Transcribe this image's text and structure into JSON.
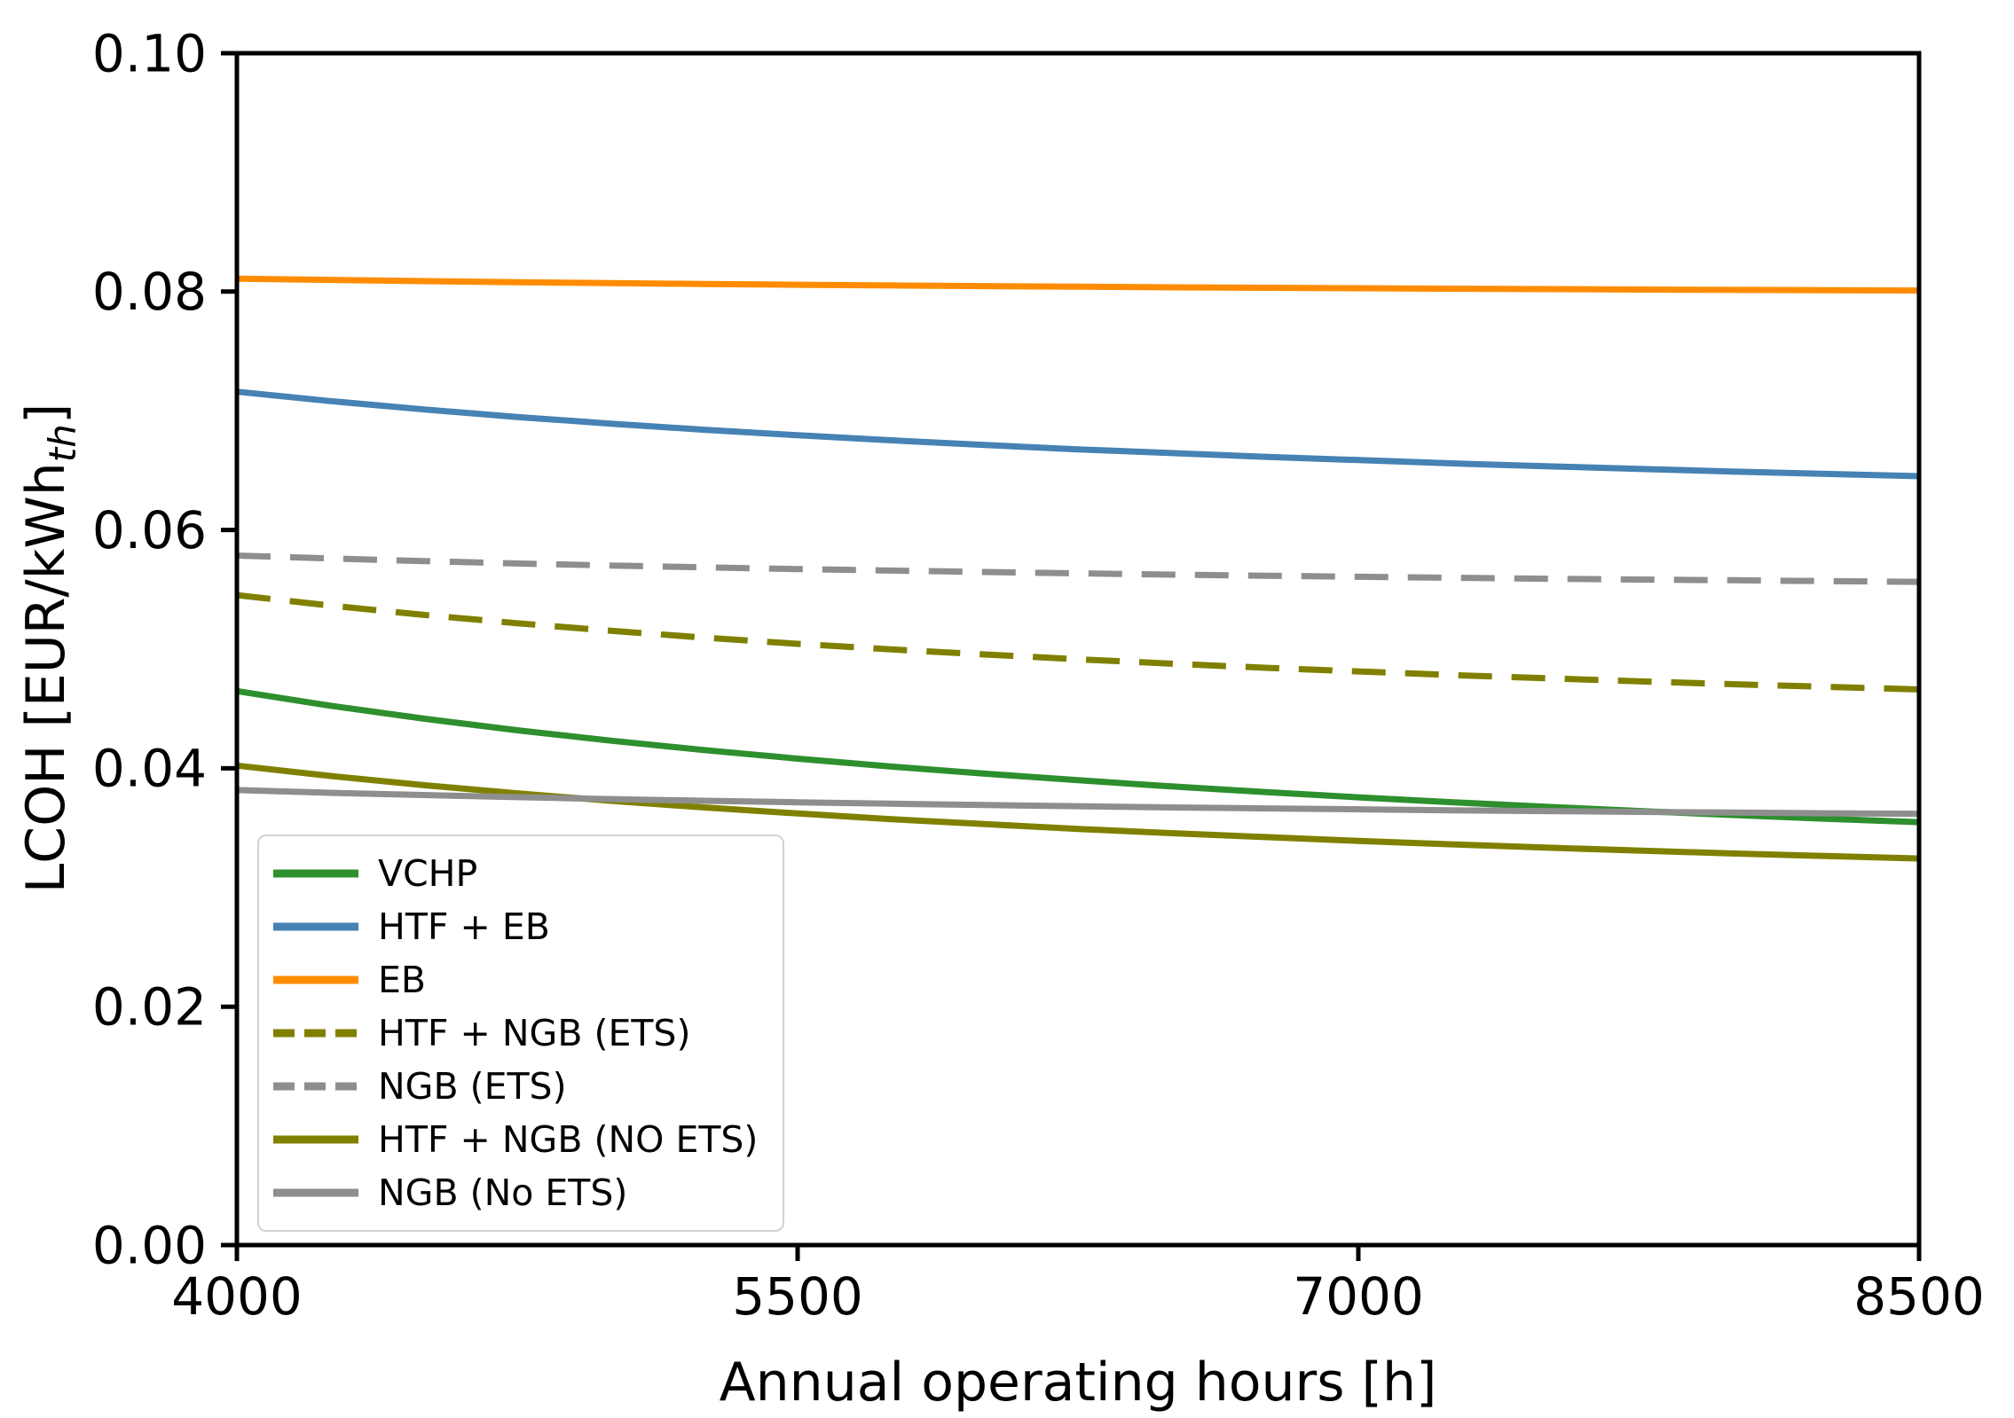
{
  "figure": {
    "background": "#ffffff",
    "axis_color": "#000000"
  },
  "chart_data": {
    "type": "line",
    "title": "",
    "xlabel": "Annual operating hours [h]",
    "ylabel_prefix": "LCOH [EUR/kWh",
    "ylabel_sub": "th",
    "ylabel_suffix": "]",
    "xlim": [
      4000,
      8500
    ],
    "ylim": [
      0.0,
      0.1
    ],
    "grid": false,
    "legend_position": "lower left",
    "xticks": [
      {
        "value": 4000,
        "label": "4000"
      },
      {
        "value": 5500,
        "label": "5500"
      },
      {
        "value": 7000,
        "label": "7000"
      },
      {
        "value": 8500,
        "label": "8500"
      }
    ],
    "yticks": [
      {
        "value": 0.0,
        "label": "0.00"
      },
      {
        "value": 0.02,
        "label": "0.02"
      },
      {
        "value": 0.04,
        "label": "0.04"
      },
      {
        "value": 0.06,
        "label": "0.06"
      },
      {
        "value": 0.08,
        "label": "0.08"
      },
      {
        "value": 0.1,
        "label": "0.10"
      }
    ],
    "x": [
      4000,
      4250,
      4500,
      4750,
      5000,
      5250,
      5500,
      5750,
      6000,
      6250,
      6500,
      6750,
      7000,
      7250,
      7500,
      7750,
      8000,
      8250,
      8500
    ],
    "series": [
      {
        "name": "VCHP",
        "color": "#2D8F2D",
        "style": "solid",
        "values": [
          0.04648,
          0.04525,
          0.04417,
          0.04319,
          0.04232,
          0.04153,
          0.04081,
          0.04015,
          0.03955,
          0.039,
          0.03848,
          0.03801,
          0.03757,
          0.03716,
          0.03678,
          0.03642,
          0.03609,
          0.03577,
          0.03548
        ]
      },
      {
        "name": "HTF + EB",
        "color": "#4682B4",
        "style": "solid",
        "values": [
          0.0716,
          0.07081,
          0.07011,
          0.06948,
          0.06892,
          0.06841,
          0.06795,
          0.06752,
          0.06713,
          0.06676,
          0.06645,
          0.06614,
          0.06586,
          0.06559,
          0.06535,
          0.06512,
          0.0649,
          0.0647,
          0.06451
        ]
      },
      {
        "name": "EB",
        "color": "#FF8C00",
        "style": "solid",
        "values": [
          0.08109,
          0.08098,
          0.08088,
          0.08079,
          0.08071,
          0.08064,
          0.08057,
          0.08051,
          0.08046,
          0.08041,
          0.08036,
          0.08032,
          0.08028,
          0.08024,
          0.08021,
          0.08017,
          0.08014,
          0.08012,
          0.08009
        ]
      },
      {
        "name": "HTF + NGB (ETS)",
        "color": "#808000",
        "style": "dashed",
        "values": [
          0.05453,
          0.05365,
          0.05287,
          0.05217,
          0.05154,
          0.05097,
          0.05045,
          0.04998,
          0.04955,
          0.04915,
          0.04878,
          0.04844,
          0.04813,
          0.04783,
          0.04756,
          0.0473,
          0.04706,
          0.04684,
          0.04662
        ]
      },
      {
        "name": "NGB (ETS)",
        "color": "#8E8E8E",
        "style": "dashed",
        "values": [
          0.05785,
          0.05761,
          0.05739,
          0.05719,
          0.05702,
          0.05686,
          0.05672,
          0.05659,
          0.05647,
          0.05636,
          0.05625,
          0.05616,
          0.05607,
          0.05599,
          0.05591,
          0.05584,
          0.05578,
          0.05571,
          0.05565
        ]
      },
      {
        "name": "HTF + NGB (NO ETS)",
        "color": "#808000",
        "style": "solid",
        "values": [
          0.04023,
          0.03936,
          0.03859,
          0.0379,
          0.03728,
          0.03672,
          0.03621,
          0.03574,
          0.03532,
          0.03492,
          0.03456,
          0.03423,
          0.03391,
          0.03362,
          0.03335,
          0.0331,
          0.03286,
          0.03264,
          0.03243
        ]
      },
      {
        "name": "NGB (No ETS)",
        "color": "#8E8E8E",
        "style": "solid",
        "values": [
          0.03818,
          0.03795,
          0.03776,
          0.03758,
          0.03742,
          0.03728,
          0.03715,
          0.03703,
          0.03692,
          0.03682,
          0.03672,
          0.03664,
          0.03656,
          0.03648,
          0.03641,
          0.03635,
          0.03629,
          0.03623,
          0.03618
        ]
      }
    ]
  }
}
